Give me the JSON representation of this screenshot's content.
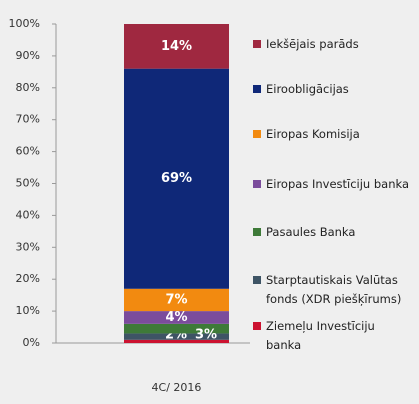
{
  "chart_data": {
    "type": "stacked_bar",
    "categories": [
      "4C/ 2016"
    ],
    "series": [
      {
        "name": "Iekšējais parāds",
        "color": "#9f2840",
        "values": [
          14
        ],
        "value_labels": [
          "14%"
        ]
      },
      {
        "name": "Eiroobligācijas",
        "color": "#0f2878",
        "values": [
          69
        ],
        "value_labels": [
          "69%"
        ]
      },
      {
        "name": "Eiropas Komisija",
        "color": "#f28a10",
        "values": [
          7
        ],
        "value_labels": [
          "7%"
        ]
      },
      {
        "name": "Eiropas Investīciju banka",
        "color": "#7b4c9c",
        "values": [
          4
        ],
        "value_labels": [
          "4%"
        ]
      },
      {
        "name": "Pasaules Banka",
        "color": "#3e7a38",
        "values": [
          3
        ],
        "value_labels": [
          "3%"
        ]
      },
      {
        "name": "Starptautiskais Valūtas fonds (XDR piešķīrums)",
        "color": "#3e5465",
        "values": [
          2
        ],
        "value_labels": [
          "2%"
        ]
      },
      {
        "name": "Ziemeļu Investīciju banka",
        "color": "#cc1230",
        "values": [
          1
        ],
        "value_labels": [
          "1%"
        ]
      }
    ],
    "ylim": [
      0,
      100
    ],
    "yticks": [
      {
        "value": 0,
        "label": "0%"
      },
      {
        "value": 10,
        "label": "10%"
      },
      {
        "value": 20,
        "label": "20%"
      },
      {
        "value": 30,
        "label": "30%"
      },
      {
        "value": 40,
        "label": "40%"
      },
      {
        "value": 50,
        "label": "50%"
      },
      {
        "value": 60,
        "label": "60%"
      },
      {
        "value": 70,
        "label": "70%"
      },
      {
        "value": 80,
        "label": "80%"
      },
      {
        "value": 90,
        "label": "90%"
      },
      {
        "value": 100,
        "label": "100%"
      }
    ],
    "legend": "right"
  }
}
